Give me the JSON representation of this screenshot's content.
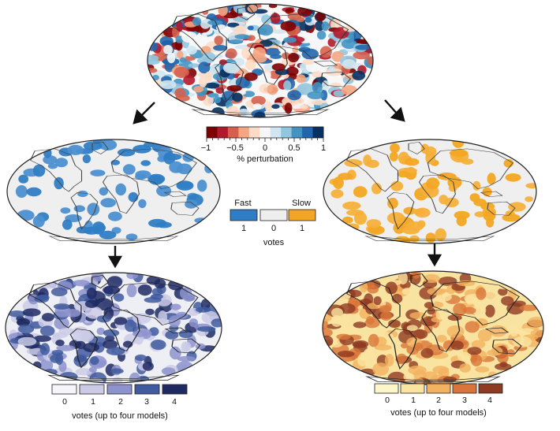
{
  "perturbation_scale": {
    "ticks": [
      "−1",
      "−0.5",
      "0",
      "0.5",
      "1"
    ],
    "label": "% perturbation"
  },
  "votes_key": {
    "fast_label": "Fast",
    "slow_label": "Slow",
    "values": [
      "1",
      "0",
      "1"
    ],
    "label": "votes",
    "colors": {
      "fast": "#2f7dc4",
      "neutral": "#eeeeee",
      "slow": "#f2a623"
    }
  },
  "fast_votes_legend": {
    "values": [
      "0",
      "1",
      "2",
      "3",
      "4"
    ],
    "colors": [
      "#f6f5fb",
      "#cbcbe6",
      "#8d93cc",
      "#3f5a9e",
      "#1f2a63"
    ],
    "label": "votes (up to four models)"
  },
  "slow_votes_legend": {
    "values": [
      "0",
      "1",
      "2",
      "3",
      "4"
    ],
    "colors": [
      "#fdf6c8",
      "#fbe3a0",
      "#f2b260",
      "#d9753a",
      "#8f3a22"
    ],
    "label": "votes (up to four models)"
  },
  "colors": {
    "ocean_fast_vote": "#eeeef5",
    "ocean_neutral": "#eeeeee",
    "ocean_slow_sum": "#f9e3a0",
    "coast": "#333333",
    "arrow": "#111111"
  },
  "perturbation_colors": [
    "#7f0000",
    "#b2182b",
    "#d6604d",
    "#f4a582",
    "#fddbc7",
    "#f7f7f7",
    "#d1e5f0",
    "#92c5de",
    "#4393c3",
    "#2166ac",
    "#053061"
  ]
}
